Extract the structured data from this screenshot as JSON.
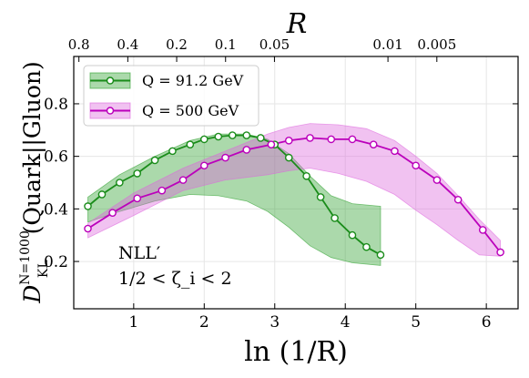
{
  "chart_data": {
    "type": "line",
    "title": "",
    "xlabel": "ln (1/R)",
    "ylabel": "D_KL^{N=1000}(Quark||Gluon)",
    "ylabel_parts": {
      "main": "D",
      "sub": "KL",
      "sup": "N=1000",
      "rest": "(Quark||Gluon)"
    },
    "top_xlabel": "R",
    "xlim": [
      0.15,
      6.45
    ],
    "ylim": [
      0.02,
      0.98
    ],
    "grid": true,
    "legend_position": "top-left",
    "x_ticks": [
      1,
      2,
      3,
      4,
      5,
      6
    ],
    "y_ticks": [
      0.2,
      0.4,
      0.6,
      0.8
    ],
    "y_tick_labels": [
      "0.2",
      "0.4",
      "0.6",
      "0.8"
    ],
    "top_ticks": [
      {
        "label": "0.8",
        "R": 0.8
      },
      {
        "label": "0.4",
        "R": 0.4
      },
      {
        "label": "0.2",
        "R": 0.2
      },
      {
        "label": "0.1",
        "R": 0.1
      },
      {
        "label": "0.05",
        "R": 0.05
      },
      {
        "label": "0.01",
        "R": 0.01
      },
      {
        "label": "0.005",
        "R": 0.005
      }
    ],
    "annotations": [
      "NLL′",
      "1/2 < ζ_i < 2"
    ],
    "series": [
      {
        "name": "Q = 91.2 GeV",
        "color": "#1a8c1a",
        "band_color": "#2ca02c",
        "x": [
          0.35,
          0.55,
          0.8,
          1.05,
          1.3,
          1.55,
          1.8,
          2.0,
          2.2,
          2.4,
          2.6,
          2.8,
          3.0,
          3.2,
          3.45,
          3.65,
          3.85,
          4.1,
          4.3,
          4.5
        ],
        "y": [
          0.41,
          0.455,
          0.5,
          0.535,
          0.585,
          0.62,
          0.645,
          0.665,
          0.675,
          0.68,
          0.68,
          0.67,
          0.645,
          0.595,
          0.525,
          0.445,
          0.365,
          0.3,
          0.255,
          0.225
        ],
        "band_x": [
          0.35,
          0.8,
          1.3,
          1.8,
          2.2,
          2.6,
          2.9,
          3.2,
          3.5,
          3.8,
          4.1,
          4.5
        ],
        "band_upper": [
          0.445,
          0.53,
          0.6,
          0.66,
          0.685,
          0.685,
          0.665,
          0.61,
          0.525,
          0.45,
          0.42,
          0.41
        ],
        "band_lower": [
          0.35,
          0.39,
          0.43,
          0.455,
          0.45,
          0.43,
          0.39,
          0.33,
          0.26,
          0.215,
          0.195,
          0.185
        ]
      },
      {
        "name": "Q = 500 GeV",
        "color": "#bb00bb",
        "band_color": "#dd66dd",
        "x": [
          0.35,
          0.7,
          1.05,
          1.4,
          1.7,
          2.0,
          2.3,
          2.6,
          2.95,
          3.2,
          3.5,
          3.8,
          4.1,
          4.4,
          4.7,
          5.0,
          5.3,
          5.6,
          5.95,
          6.2
        ],
        "y": [
          0.325,
          0.385,
          0.44,
          0.47,
          0.51,
          0.565,
          0.595,
          0.625,
          0.645,
          0.66,
          0.67,
          0.665,
          0.665,
          0.645,
          0.62,
          0.565,
          0.51,
          0.435,
          0.32,
          0.235
        ],
        "band_x": [
          0.35,
          1.0,
          1.7,
          2.3,
          2.9,
          3.2,
          3.5,
          3.9,
          4.3,
          4.7,
          5.0,
          5.3,
          5.6,
          5.9,
          6.2
        ],
        "band_upper": [
          0.345,
          0.46,
          0.555,
          0.62,
          0.685,
          0.71,
          0.725,
          0.72,
          0.705,
          0.66,
          0.6,
          0.535,
          0.45,
          0.36,
          0.28
        ],
        "band_lower": [
          0.29,
          0.375,
          0.47,
          0.51,
          0.53,
          0.545,
          0.555,
          0.535,
          0.505,
          0.455,
          0.395,
          0.34,
          0.28,
          0.225,
          0.22
        ]
      }
    ]
  }
}
